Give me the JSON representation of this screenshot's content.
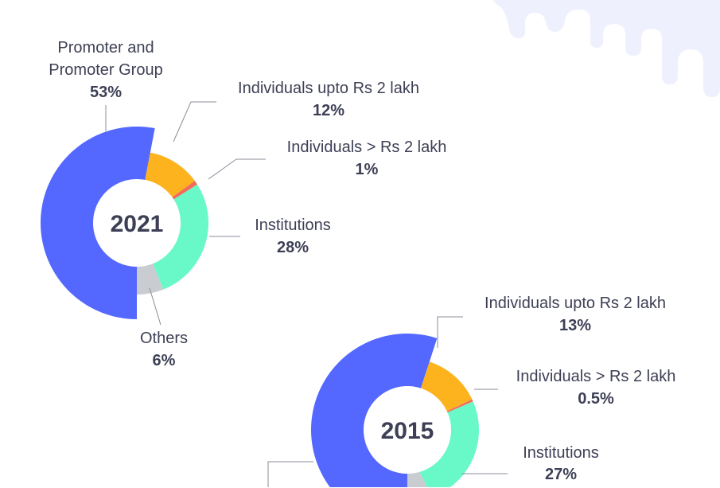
{
  "colors": {
    "promoter": "#5468ff",
    "upto2": "#fdb31e",
    "above2": "#f26b5b",
    "institutions": "#69f8c8",
    "others": "#c9cdd2",
    "text": "#3d3f55",
    "splash": "#eef0fd"
  },
  "chart_data": [
    {
      "type": "pie",
      "title": "2021",
      "labels": [
        "Promoter and Promoter Group",
        "Individuals upto Rs 2 lakh",
        "Individuals > Rs 2 lakh",
        "Institutions",
        "Others"
      ],
      "label_lines": [
        [
          "Promoter and",
          "Promoter Group"
        ],
        [
          "Individuals upto Rs 2 lakh"
        ],
        [
          "Individuals > Rs 2 lakh"
        ],
        [
          "Institutions"
        ],
        [
          "Others"
        ]
      ],
      "values": [
        53,
        12,
        1,
        28,
        6
      ],
      "value_labels": [
        "53%",
        "12%",
        "1%",
        "28%",
        "6%"
      ]
    },
    {
      "type": "pie",
      "title": "2015",
      "labels": [
        "Promoter and Promoter Group",
        "Individuals upto Rs 2 lakh",
        "Individuals > Rs 2 lakh",
        "Institutions",
        "Others"
      ],
      "values": [
        55,
        13,
        0.5,
        27,
        4.5
      ],
      "value_labels": [
        "",
        "13%",
        "0.5%",
        "27%",
        ""
      ]
    }
  ]
}
